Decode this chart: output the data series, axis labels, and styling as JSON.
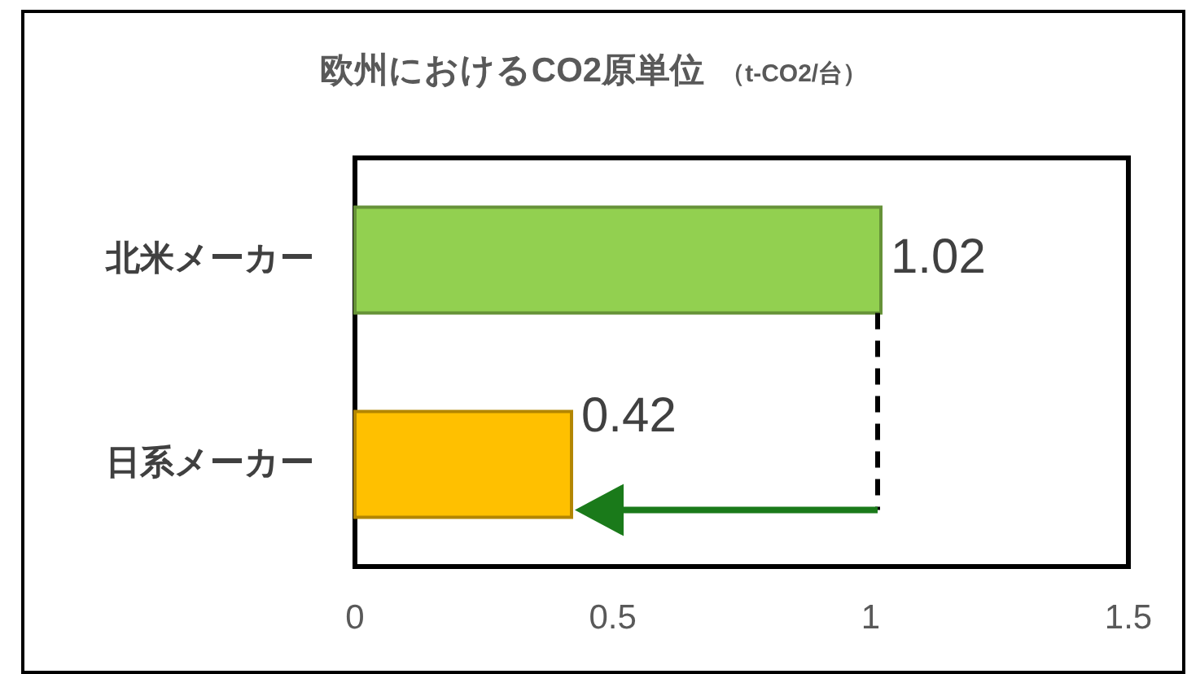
{
  "chart_data": {
    "type": "bar",
    "orientation": "horizontal",
    "title": "欧州におけるCO2原単位",
    "subtitle": "（t-CO2/台）",
    "categories": [
      "北米メーカー",
      "日系メーカー"
    ],
    "values": [
      1.02,
      0.42
    ],
    "colors": [
      "#92d050",
      "#ffc000"
    ],
    "xlim": [
      0,
      1.5
    ],
    "xticks": [
      0,
      0.5,
      1,
      1.5
    ],
    "data_labels": true
  }
}
